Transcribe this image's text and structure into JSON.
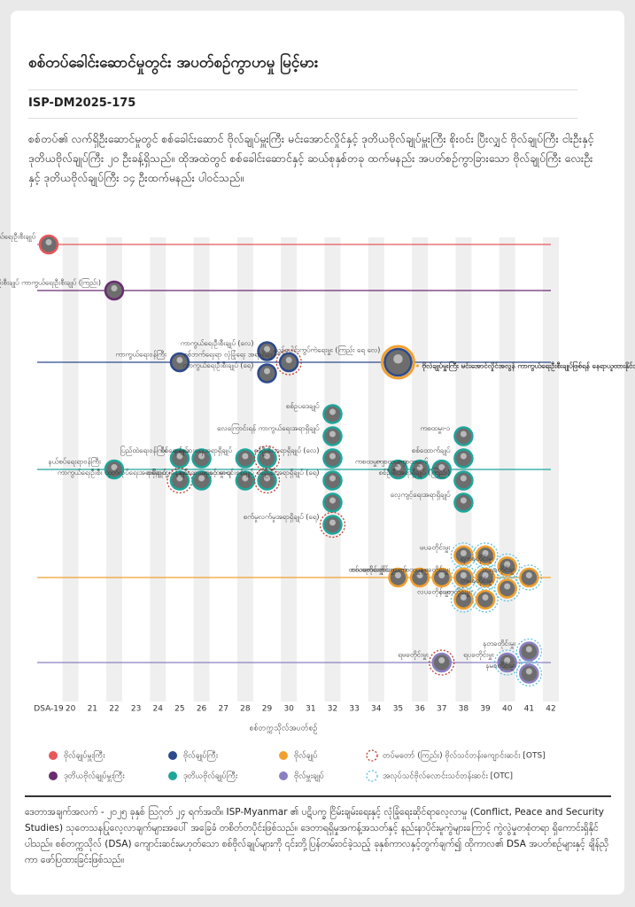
{
  "chart_data": {
    "type": "scatter",
    "title": "စစ်တပ်ခေါင်းဆောင်မှုတွင်း အပတ်စဉ်ကွာဟမှု မြင့်မား",
    "code": "ISP-DM2025-175",
    "intro": "စစ်တပ်၏ လက်ရှိဦးဆောင်မှုတွင် စစ်ခေါင်းဆောင် ဗိုလ်ချုပ်မှူးကြီး မင်းအောင်လှိုင်နှင့် ဒုတိယဗိုလ်ချုပ်မှူးကြီး စိုးဝင်း ပြီးလျှင် ဗိုလ်ချုပ်ကြီး ငါးဦးနှင့် ဒုတိယဗိုလ်ချုပ်ကြီး ၂၀ ဦးခန့်ရှိသည်။ ထိုအထဲတွင် စစ်ခေါင်းဆောင်နှင့် ဆယ်စုနှစ်တခု ထက်မနည်း အပတ်စဉ်ကွာခြားသော ဗိုလ်ချုပ်ကြီး လေးဦးနှင့် ဒုတိယဗိုလ်ချုပ်ကြီး ၁၄ ဦးထက်မနည်း ပါဝင်သည်။",
    "x_label": "စစ်တက္ကသိုလ်အပတ်စဉ်",
    "xlim": [
      19,
      42
    ],
    "xticks": [
      {
        "value": 19,
        "label": "DSA-19"
      },
      20,
      21,
      22,
      23,
      24,
      25,
      26,
      27,
      28,
      29,
      30,
      31,
      32,
      33,
      34,
      35,
      36,
      37,
      38,
      39,
      40,
      41,
      42
    ],
    "annotation": "ဗိုလ်ချုပ်မှူးကြီး မင်းအောင်လှိုင်အလွန် ကာကွယ်ရေးဦးစီးချုပ်ဖြစ်ရန် နေရာယူထားနိုင်သူ",
    "ring_styles": [
      {
        "name": "တပ်မတော် (ကြည်း) ဗိုလ်သင်တန်းကျောင်းဆင်း [OTS]",
        "color": "#c0392b"
      },
      {
        "name": "အလုပ်သင်ဗိုလ်လောင်းသင်တန်းဆင်း [OTC]",
        "color": "#5bc0de"
      }
    ],
    "series": [
      {
        "name": "ဗိုလ်ချုပ်မှူးကြီး",
        "color": "#e8575a",
        "x": [
          19
        ],
        "labels": [
          "ကာကွယ်ရေးဦးစီးချုပ်"
        ],
        "rings": [
          null
        ]
      },
      {
        "name": "ဒုတိယဗိုလ်ချုပ်မှူးကြီး",
        "color": "#6a2c70",
        "x": [
          22
        ],
        "labels": [
          "ဒုတိယကာကွယ်ရေးဦးစီးချုပ် ကာကွယ်ရေးဦးစီးချုပ် (ကြည်း)"
        ],
        "rings": [
          null
        ]
      },
      {
        "name": "ဗိုလ်ချုပ်ကြီး",
        "color": "#2c4a8c",
        "x": [
          25,
          29,
          29,
          30,
          35
        ],
        "labels": [
          "ကာကွယ်ရေးဝန်ကြီး",
          "ကာကွယ်ရေးဦးစီးချုပ် (လေ)",
          "ကာကွယ်ရေးဦးစီးချုပ် (ရေ)",
          "စစ်ဘက်ရေးရာ လုံခြုံရေး အရာရှိချုပ်",
          "ညွှန့်ပေါင်းကွပ်ကဲရေးမှူး (ကြည်း ရေ လေ)"
        ],
        "rings": [
          null,
          null,
          null,
          0,
          null
        ]
      },
      {
        "name": "ဒုတိယဗိုလ်ချုပ်ကြီး",
        "color": "#1fa59a",
        "x": [
          22,
          25,
          25,
          26,
          26,
          28,
          28,
          29,
          29,
          32,
          32,
          32,
          32,
          32,
          32,
          35,
          36,
          37,
          38,
          38,
          38,
          38
        ],
        "labels": [
          "နယ်စပ်ရေးရာဝန်ကြီး",
          "ပြည်ထဲရေးဝန်ကြီး",
          "ကာကွယ်ရေးဦးစီး ထုတ်လုပ်ရေးအရာရှိချုပ်",
          "စစ်ရေးချုပ်",
          "စစ်ရာထူးခန့်ချုပ်",
          "စစ်ဆေးရေးအရာရှိချုပ်",
          "ကစထမှူး-၃",
          null,
          "စစ်ဆေးရေးနှင့် စာရင်းစစ်ချုပ်",
          "စစ်ဥပဒေချုပ်",
          "လေကြောင်းရန် ကာကွယ်ရေးအရာရှိချုပ်",
          "စစ်ဦးစီးအရာရှိချုပ် (လေ)",
          "စစ်ဦးစီးအရာရှိချုပ် (ရေ)",
          null,
          "စက်မှုလက်မှုအရာရှိချုပ် (ရေ)",
          "ကစထမှူး-၂",
          "ကစထမှူး-၄",
          "ကစထမှူး-၆",
          "ကစထမှူး-၁",
          "စစ်ထောက်ချုပ်",
          "စစ်ဦးစီးအရာရှိချုပ် (ကြည်း)",
          "လေ့ကျင့်ရေးအရာရှိချုပ်"
        ],
        "rings": [
          null,
          null,
          0,
          null,
          null,
          null,
          null,
          0,
          0,
          null,
          null,
          null,
          null,
          null,
          0,
          null,
          null,
          null,
          null,
          null,
          null,
          null
        ]
      },
      {
        "name": "ဗိုလ်ချုပ်",
        "color": "#f0a030",
        "x": [
          35,
          36,
          37,
          38,
          38,
          38,
          39,
          39,
          39,
          40,
          40,
          41
        ],
        "labels": [
          "တသခတိုင်းမှူး",
          "စစ်တက်လက်ထောက်",
          "ရလခတိုင်းမှူး ကစထမှူး-၅",
          "မပခတိုင်းမှူး",
          "နပခတိုင်းမှူး",
          "လပခတိုင်းမှူး",
          null,
          null,
          "နပတတိုင်းမှူး",
          "ရကခတိုင်းမှူး",
          "တမခတိုင်းမှူး",
          "ကရခတိုင်းမှူး"
        ],
        "rings": [
          null,
          null,
          null,
          1,
          1,
          1,
          1,
          1,
          1,
          1,
          1,
          1
        ]
      },
      {
        "name": "ဗိုလ်မှူးချုပ်",
        "color": "#8a7fc0",
        "x": [
          37,
          40,
          41,
          41
        ],
        "labels": [
          "ရမခတိုင်းမှူး",
          "ရပခတိုင်းမှူး",
          "နတခတိုင်းမှူး",
          "နမခတိုင်းမှူး"
        ],
        "rings": [
          0,
          1,
          1,
          1
        ]
      }
    ],
    "source": "ဒေတာအချက်အလက် - ၂၀၂၅ ခုနှစ် ဩဂုတ် ၂၄ ရက်အထိ။ ISP-Myanmar ၏ ပဋိပက္ခ ငြိမ်းချမ်းရေးနှင့် လုံခြုံရေးဆိုင်ရာလေ့လာမှု (Conflict, Peace and Security Studies) သုတေသနပြုလေ့လာချက်များအပေါ် အခြေခံ တစိတ်တပိုင်းဖြစ်သည်။ ဒေတာရရှိမှုအကန့်အသတ်နှင့် နည်းနာပိုင်းမူကွဲများကြောင့် ကွဲလွဲမှုတစုံတရာ ရှိကောင်းရှိနိုင်ပါသည်။ စစ်တက္ကသိုလ် (DSA) ကျောင်းဆင်းမဟုတ်သော စစ်ဗိုလ်ချုပ်များကို ၎င်းတို့ပြန်တမ်းဝင်ခဲ့သည့် ခုနှစ်ကာလနှင့်တွက်ချက်၍ ထိုကာလ၏ DSA အပတ်စဉ်များနှင့် ချိန်ညှိကာ ဖော်ပြထားခြင်းဖြစ်သည်။"
  }
}
